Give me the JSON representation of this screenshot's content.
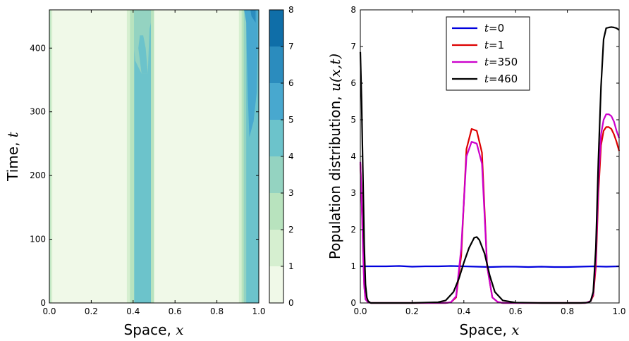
{
  "chart_data": [
    {
      "type": "heatmap",
      "xlabel": "Space, ",
      "xlabel_var": "x",
      "ylabel": "Time, ",
      "ylabel_var": "t",
      "xlim": [
        0.0,
        1.0
      ],
      "ylim": [
        0,
        460
      ],
      "x_ticks": [
        "0.0",
        "0.2",
        "0.4",
        "0.6",
        "0.8",
        "1.0"
      ],
      "y_ticks": [
        "0",
        "100",
        "200",
        "300",
        "400"
      ],
      "colorbar": {
        "levels": [
          0,
          1,
          2,
          3,
          4,
          5,
          6,
          7,
          8
        ],
        "tick_labels": [
          "0",
          "1",
          "2",
          "3",
          "4",
          "5",
          "6",
          "7",
          "8"
        ],
        "colors": [
          "#f0f9e8",
          "#d6efd0",
          "#b8e3be",
          "#94d3c1",
          "#6cc3cb",
          "#48a8cf",
          "#2b8cbe",
          "#0f6ea8",
          "#08589e"
        ]
      },
      "bands": [
        {
          "x0": 0.0,
          "x1": 0.006,
          "level": 2
        },
        {
          "x0": 0.006,
          "x1": 0.014,
          "level": 1
        },
        {
          "x0": 0.014,
          "x1": 0.37,
          "level": 0
        },
        {
          "x0": 0.37,
          "x1": 0.385,
          "level": 1
        },
        {
          "x0": 0.385,
          "x1": 0.405,
          "level": 2
        },
        {
          "x0": 0.405,
          "x1": 0.485,
          "level": 4
        },
        {
          "x0": 0.485,
          "x1": 0.5,
          "level": 2
        },
        {
          "x0": 0.5,
          "x1": 0.905,
          "level": 0
        },
        {
          "x0": 0.905,
          "x1": 0.918,
          "level": 1
        },
        {
          "x0": 0.918,
          "x1": 0.928,
          "level": 2
        },
        {
          "x0": 0.928,
          "x1": 0.94,
          "level": 3
        },
        {
          "x0": 0.94,
          "x1": 1.0,
          "level": 4
        }
      ],
      "regions": [
        {
          "level": 3,
          "points": [
            [
              0.405,
              460
            ],
            [
              0.485,
              460
            ],
            [
              0.485,
              440
            ],
            [
              0.478,
              430
            ],
            [
              0.47,
              360
            ],
            [
              0.44,
              360
            ],
            [
              0.41,
              380
            ],
            [
              0.405,
              400
            ]
          ]
        },
        {
          "level": 4,
          "points": [
            [
              0.425,
              400
            ],
            [
              0.432,
              420
            ],
            [
              0.448,
              420
            ],
            [
              0.46,
              400
            ],
            [
              0.47,
              360
            ],
            [
              0.44,
              360
            ]
          ]
        },
        {
          "level": 5,
          "points": [
            [
              0.93,
              460
            ],
            [
              0.995,
              460
            ],
            [
              0.995,
              400
            ],
            [
              0.99,
              330
            ],
            [
              0.975,
              285
            ],
            [
              0.955,
              260
            ],
            [
              0.948,
              320
            ],
            [
              0.942,
              400
            ],
            [
              0.94,
              440
            ]
          ]
        },
        {
          "level": 6,
          "points": [
            [
              0.96,
              460
            ],
            [
              0.985,
              460
            ],
            [
              0.985,
              440
            ],
            [
              0.975,
              445
            ],
            [
              0.965,
              450
            ]
          ]
        }
      ]
    },
    {
      "type": "line",
      "xlabel": "Space, ",
      "xlabel_var": "x",
      "ylabel": "Population distribution, ",
      "ylabel_var": "u(x,t)",
      "xlim": [
        0.0,
        1.0
      ],
      "ylim": [
        0,
        8
      ],
      "x_ticks": [
        "0.0",
        "0.2",
        "0.4",
        "0.6",
        "0.8",
        "1.0"
      ],
      "y_ticks": [
        "0",
        "1",
        "2",
        "3",
        "4",
        "5",
        "6",
        "7",
        "8"
      ],
      "legend": {
        "position": "top-center"
      },
      "series": [
        {
          "name_var": "t",
          "name_val": "=0",
          "color": "#0000dd",
          "x": [
            0,
            0.05,
            0.1,
            0.15,
            0.2,
            0.25,
            0.3,
            0.35,
            0.4,
            0.45,
            0.5,
            0.55,
            0.6,
            0.65,
            0.7,
            0.75,
            0.8,
            0.85,
            0.9,
            0.95,
            1.0
          ],
          "y": [
            1.0,
            1.0,
            1.0,
            1.01,
            0.99,
            1.0,
            1.0,
            1.01,
            1.0,
            0.99,
            0.98,
            0.99,
            0.99,
            0.98,
            0.99,
            0.98,
            0.98,
            0.99,
            1.0,
            0.99,
            1.0
          ]
        },
        {
          "name_var": "t",
          "name_val": "=1",
          "color": "#dd0000",
          "x": [
            0,
            0.005,
            0.01,
            0.015,
            0.02,
            0.03,
            0.04,
            0.05,
            0.1,
            0.2,
            0.3,
            0.33,
            0.35,
            0.37,
            0.39,
            0.41,
            0.43,
            0.45,
            0.47,
            0.49,
            0.51,
            0.53,
            0.55,
            0.6,
            0.7,
            0.8,
            0.85,
            0.87,
            0.89,
            0.9,
            0.91,
            0.92,
            0.93,
            0.94,
            0.95,
            0.96,
            0.97,
            0.98,
            0.99,
            1.0
          ],
          "y": [
            3.8,
            2.9,
            1.6,
            0.5,
            0.1,
            0.02,
            0.0,
            0.0,
            0.0,
            0.0,
            0.0,
            0.0,
            0.02,
            0.15,
            1.3,
            4.2,
            4.75,
            4.7,
            4.1,
            1.0,
            0.15,
            0.03,
            0.0,
            0.0,
            0.0,
            0.0,
            0.0,
            0.0,
            0.05,
            0.2,
            1.0,
            3.0,
            4.3,
            4.7,
            4.8,
            4.8,
            4.75,
            4.6,
            4.4,
            4.15
          ]
        },
        {
          "name_var": "t",
          "name_val": "=350",
          "color": "#cc00cc",
          "x": [
            0,
            0.005,
            0.01,
            0.015,
            0.02,
            0.03,
            0.04,
            0.05,
            0.1,
            0.2,
            0.3,
            0.33,
            0.35,
            0.37,
            0.39,
            0.41,
            0.43,
            0.45,
            0.47,
            0.49,
            0.51,
            0.53,
            0.55,
            0.6,
            0.7,
            0.8,
            0.85,
            0.87,
            0.89,
            0.9,
            0.91,
            0.92,
            0.93,
            0.94,
            0.95,
            0.96,
            0.97,
            0.98,
            0.99,
            1.0
          ],
          "y": [
            3.85,
            2.8,
            1.5,
            0.45,
            0.1,
            0.02,
            0.0,
            0.0,
            0.0,
            0.0,
            0.0,
            0.0,
            0.02,
            0.18,
            1.5,
            4.0,
            4.4,
            4.35,
            3.8,
            1.0,
            0.15,
            0.03,
            0.0,
            0.0,
            0.0,
            0.0,
            0.0,
            0.0,
            0.05,
            0.25,
            1.2,
            3.3,
            4.6,
            5.0,
            5.15,
            5.15,
            5.1,
            4.95,
            4.7,
            4.5
          ]
        },
        {
          "name_var": "t",
          "name_val": "=460",
          "color": "#000000",
          "x": [
            0,
            0.005,
            0.01,
            0.015,
            0.02,
            0.025,
            0.03,
            0.04,
            0.05,
            0.1,
            0.2,
            0.3,
            0.33,
            0.36,
            0.38,
            0.4,
            0.42,
            0.44,
            0.45,
            0.46,
            0.48,
            0.5,
            0.52,
            0.55,
            0.6,
            0.7,
            0.8,
            0.85,
            0.88,
            0.89,
            0.9,
            0.91,
            0.92,
            0.93,
            0.94,
            0.95,
            0.96,
            0.97,
            0.98,
            0.99,
            1.0
          ],
          "y": [
            6.85,
            5.5,
            3.5,
            1.6,
            0.5,
            0.15,
            0.05,
            0.0,
            0.0,
            0.0,
            0.0,
            0.02,
            0.07,
            0.3,
            0.65,
            1.1,
            1.5,
            1.78,
            1.8,
            1.72,
            1.35,
            0.75,
            0.3,
            0.07,
            0.01,
            0.0,
            0.0,
            0.0,
            0.01,
            0.05,
            0.3,
            1.5,
            3.9,
            5.9,
            7.2,
            7.5,
            7.52,
            7.53,
            7.52,
            7.5,
            7.45
          ]
        }
      ]
    }
  ]
}
